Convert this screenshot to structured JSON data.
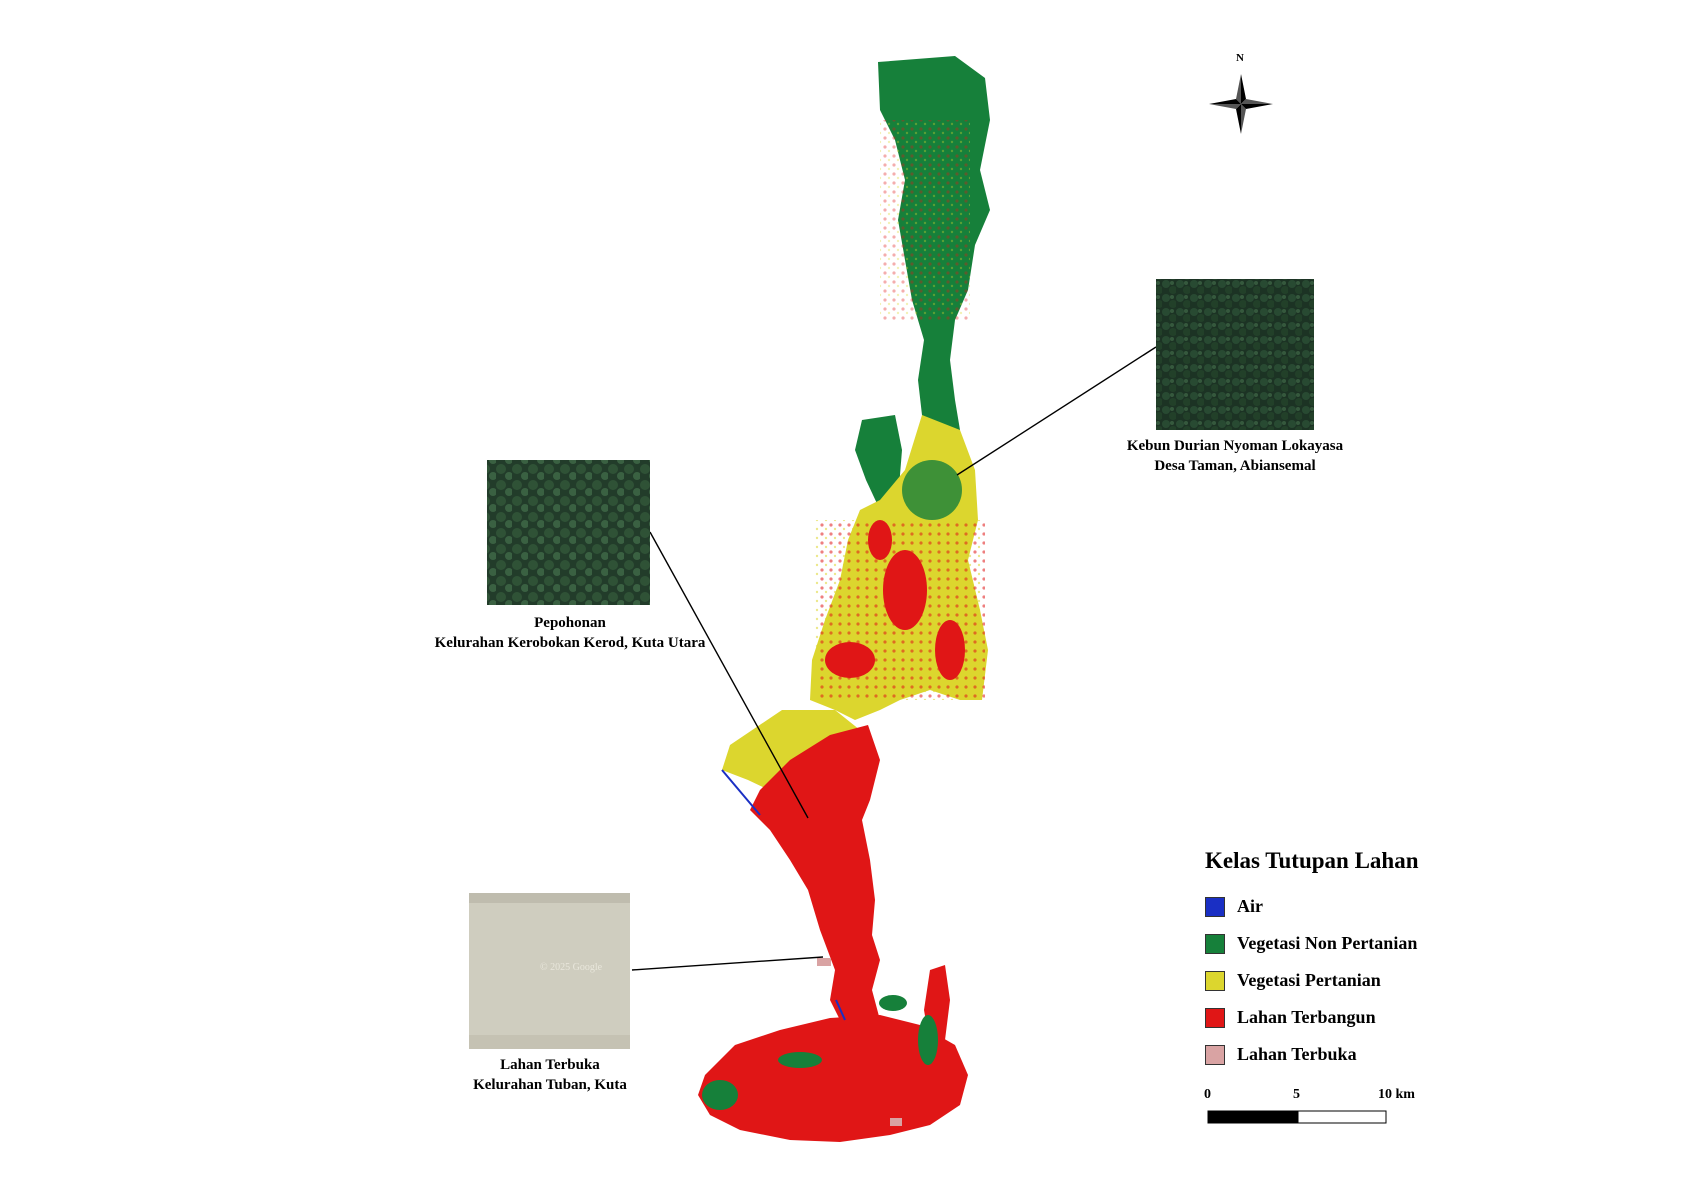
{
  "north_arrow": {
    "label": "N",
    "icon": "compass-star-icon"
  },
  "insets": [
    {
      "id": "kebun",
      "title": "Kebun Durian Nyoman Lokayasa",
      "subtitle": "Desa Taman, Abiansemal",
      "image": "forest-canopy-aerial"
    },
    {
      "id": "pepohonan",
      "title": "Pepohonan",
      "subtitle": "Kelurahan Kerobokan Kerod, Kuta Utara",
      "image": "trees-with-houses-aerial"
    },
    {
      "id": "lahan",
      "title": "Lahan Terbuka",
      "subtitle": "Kelurahan Tuban, Kuta",
      "image": "open-sand-aerial",
      "watermark": "© 2025 Google"
    }
  ],
  "legend": {
    "title": "Kelas Tutupan Lahan",
    "items": [
      {
        "label": "Air",
        "color": "#1a2fc4"
      },
      {
        "label": "Vegetasi Non Pertanian",
        "color": "#16803a"
      },
      {
        "label": "Vegetasi Pertanian",
        "color": "#dcd62e"
      },
      {
        "label": "Lahan Terbangun",
        "color": "#e01616"
      },
      {
        "label": "Lahan Terbuka",
        "color": "#d9a3a3"
      }
    ]
  },
  "scale_bar": {
    "ticks": [
      "0",
      "5",
      "10 km"
    ]
  }
}
